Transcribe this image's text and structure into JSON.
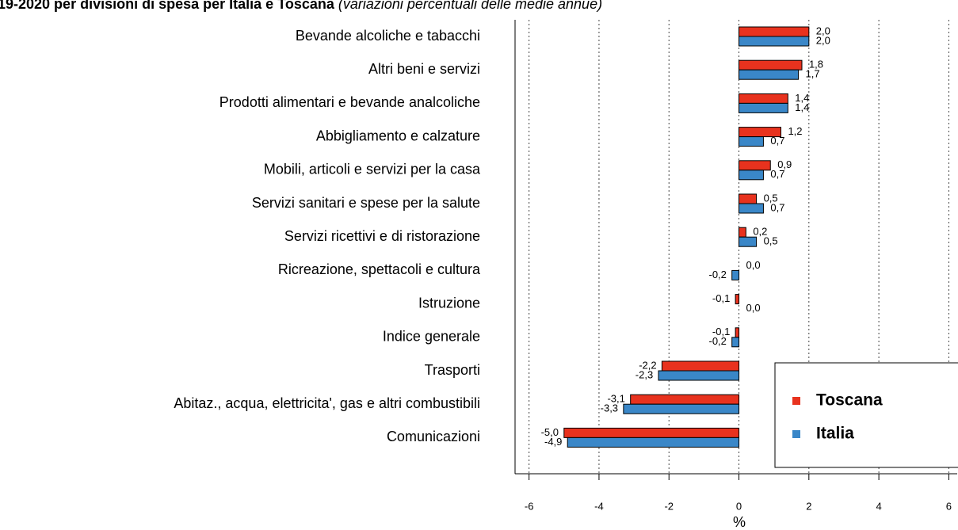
{
  "chart_data": {
    "type": "hbar",
    "title": "19-2020 per divisioni di spesa per Italia e Toscana",
    "subtitle": "(variazioni percentuali delle medie annue)",
    "x_label": "%",
    "categories": [
      "Bevande alcoliche e tabacchi",
      "Altri beni e servizi",
      "Prodotti alimentari e bevande analcoliche",
      "Abbigliamento e calzature",
      "Mobili, articoli e servizi per la casa",
      "Servizi sanitari e spese per la salute",
      "Servizi ricettivi e di ristorazione",
      "Ricreazione, spettacoli e cultura",
      "Istruzione",
      "Indice generale",
      "Trasporti",
      "Abitaz., acqua, elettricita', gas e altri combustibili",
      "Comunicazioni"
    ],
    "series": [
      {
        "name": "Toscana",
        "color": "#e8321e",
        "values": [
          2.0,
          1.8,
          1.4,
          1.2,
          0.9,
          0.5,
          0.2,
          0.0,
          -0.1,
          -0.1,
          -2.2,
          -3.1,
          -5.0
        ],
        "value_labels": [
          "2,0",
          "1,8",
          "1,4",
          "1,2",
          "0,9",
          "0,5",
          "0,2",
          "0,0",
          "-0,1",
          "-0,1",
          "-2,2",
          "-3,1",
          "-5,0"
        ]
      },
      {
        "name": "Italia",
        "color": "#3a87c8",
        "values": [
          2.0,
          1.7,
          1.4,
          0.7,
          0.7,
          0.7,
          0.5,
          -0.2,
          0.0,
          -0.2,
          -2.3,
          -3.3,
          -4.9
        ],
        "value_labels": [
          "2,0",
          "1,7",
          "1,4",
          "0,7",
          "0,7",
          "0,7",
          "0,5",
          "-0,2",
          "0,0",
          "-0,2",
          "-2,3",
          "-3,3",
          "-4,9"
        ]
      }
    ],
    "xlim": [
      -6.4,
      6.24
    ],
    "xticks": [
      -6,
      -4,
      -2,
      0,
      2,
      4,
      6
    ],
    "grid": true,
    "legend": "bottom-right"
  }
}
